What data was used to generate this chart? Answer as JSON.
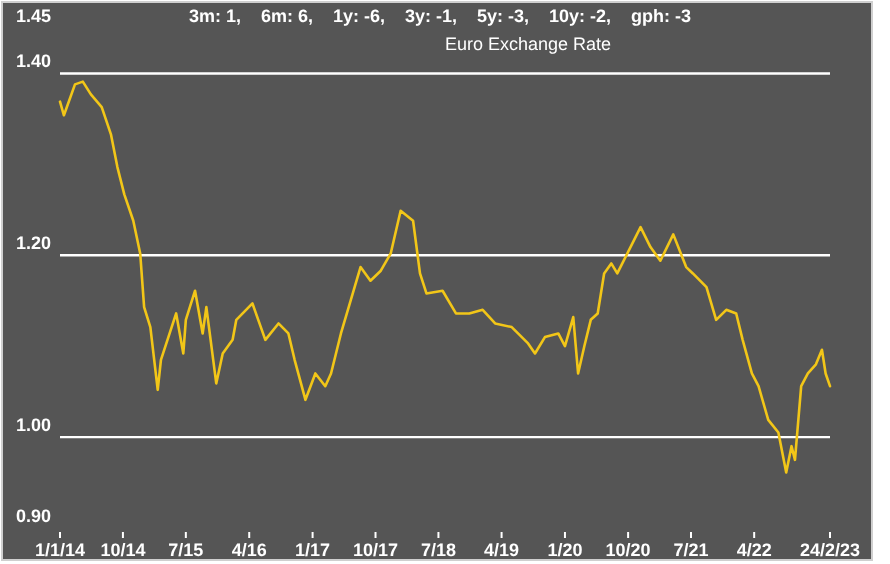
{
  "chart_data": {
    "type": "line",
    "title": "Euro Exchange Rate",
    "subtitle": "3m: 1,    6m: 6,    1y: -6,    3y: -1,    5y: -3,    10y: -2,    gph: -3",
    "x": [
      "2014-01-01",
      "2014-01-18",
      "2014-03-07",
      "2014-04-10",
      "2014-05-15",
      "2014-07-01",
      "2014-08-10",
      "2014-09-07",
      "2014-10-07",
      "2014-11-15",
      "2014-12-15",
      "2015-01-01",
      "2015-01-28",
      "2015-03-01",
      "2015-03-15",
      "2015-05-20",
      "2015-06-20",
      "2015-07-01",
      "2015-08-10",
      "2015-09-12",
      "2015-09-28",
      "2015-11-10",
      "2015-12-08",
      "2016-01-20",
      "2016-02-05",
      "2016-04-15",
      "2016-06-10",
      "2016-08-06",
      "2016-09-18",
      "2016-10-15",
      "2016-12-01",
      "2017-01-13",
      "2017-02-25",
      "2017-03-22",
      "2017-05-04",
      "2017-06-16",
      "2017-07-28",
      "2017-09-09",
      "2017-10-24",
      "2017-12-06",
      "2018-01-18",
      "2018-03-13",
      "2018-04-12",
      "2018-05-10",
      "2018-07-19",
      "2018-09-15",
      "2018-11-12",
      "2019-01-09",
      "2019-03-04",
      "2019-05-15",
      "2019-07-25",
      "2019-08-24",
      "2019-10-06",
      "2019-12-03",
      "2020-01-01",
      "2020-02-06",
      "2020-02-27",
      "2020-03-25",
      "2020-04-22",
      "2020-05-22",
      "2020-06-19",
      "2020-07-20",
      "2020-08-15",
      "2020-11-24",
      "2021-01-06",
      "2021-02-18",
      "2021-04-15",
      "2021-06-10",
      "2021-07-09",
      "2021-09-06",
      "2021-10-18",
      "2021-12-01",
      "2022-01-13",
      "2022-02-10",
      "2022-03-22",
      "2022-04-20",
      "2022-06-01",
      "2022-07-15",
      "2022-08-18",
      "2022-09-10",
      "2022-09-25",
      "2022-10-22",
      "2022-11-20",
      "2022-12-25",
      "2023-01-20",
      "2023-02-05",
      "2023-02-24"
    ],
    "series": [
      {
        "color": "#f2c618",
        "values": [
          1.369,
          1.354,
          1.388,
          1.391,
          1.377,
          1.363,
          1.333,
          1.297,
          1.267,
          1.238,
          1.202,
          1.143,
          1.121,
          1.052,
          1.085,
          1.136,
          1.092,
          1.129,
          1.161,
          1.114,
          1.143,
          1.059,
          1.092,
          1.107,
          1.129,
          1.147,
          1.107,
          1.125,
          1.114,
          1.085,
          1.041,
          1.07,
          1.056,
          1.07,
          1.114,
          1.151,
          1.187,
          1.172,
          1.183,
          1.202,
          1.249,
          1.238,
          1.18,
          1.158,
          1.161,
          1.136,
          1.136,
          1.14,
          1.125,
          1.121,
          1.103,
          1.092,
          1.11,
          1.114,
          1.1,
          1.132,
          1.07,
          1.1,
          1.129,
          1.136,
          1.18,
          1.191,
          1.18,
          1.231,
          1.209,
          1.194,
          1.223,
          1.187,
          1.18,
          1.165,
          1.129,
          1.14,
          1.136,
          1.107,
          1.07,
          1.056,
          1.019,
          1.005,
          0.961,
          0.99,
          0.975,
          1.056,
          1.07,
          1.08,
          1.096,
          1.07,
          1.056
        ]
      }
    ],
    "xlim": [
      "2014-01-01",
      "2023-02-24"
    ],
    "xticks": [
      {
        "value": "2014-01-01",
        "label": "1/1/14"
      },
      {
        "value": "2014-10-01",
        "label": "10/14"
      },
      {
        "value": "2015-07-01",
        "label": "7/15"
      },
      {
        "value": "2016-04-01",
        "label": "4/16"
      },
      {
        "value": "2017-01-01",
        "label": "1/17"
      },
      {
        "value": "2017-10-01",
        "label": "10/17"
      },
      {
        "value": "2018-07-01",
        "label": "7/18"
      },
      {
        "value": "2019-04-01",
        "label": "4/19"
      },
      {
        "value": "2020-01-01",
        "label": "1/20"
      },
      {
        "value": "2020-10-01",
        "label": "10/20"
      },
      {
        "value": "2021-07-01",
        "label": "7/21"
      },
      {
        "value": "2022-04-01",
        "label": "4/22"
      },
      {
        "value": "2023-02-24",
        "label": "24/2/23"
      }
    ],
    "ylim": [
      0.9,
      1.45
    ],
    "yticks": [
      {
        "value": 0.9,
        "label": "0.90"
      },
      {
        "value": 1.0,
        "label": "1.00"
      },
      {
        "value": 1.2,
        "label": "1.20"
      },
      {
        "value": 1.4,
        "label": "1.40"
      },
      {
        "value": 1.45,
        "label": "1.45"
      }
    ],
    "grid": "y"
  }
}
